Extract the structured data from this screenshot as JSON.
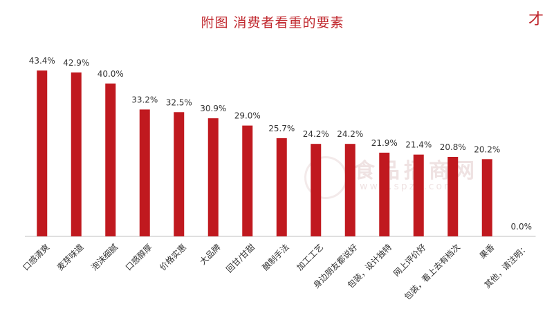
{
  "title": "附图 消费者看重的要素",
  "corner_text": "才",
  "watermark": {
    "cn": "食品招商网",
    "en": "www.spzs.com"
  },
  "colors": {
    "bar": "#c0191f",
    "title": "#c0272d",
    "axis": "#bfbfbf",
    "text": "#333333"
  },
  "chart_data": {
    "type": "bar",
    "title": "附图 消费者看重的要素",
    "categories": [
      "口感清爽",
      "麦芽味道",
      "泡沫细腻",
      "口感醇厚",
      "价格实惠",
      "大品牌",
      "回甘/甘甜",
      "酿制手法",
      "加工工艺",
      "身边朋友都说好",
      "包装，设计独特",
      "网上评价好",
      "包装，看上去有档次",
      "果香",
      "其他，请注明："
    ],
    "values": [
      43.4,
      42.9,
      40.0,
      33.2,
      32.5,
      30.9,
      29.0,
      25.7,
      24.2,
      24.2,
      21.9,
      21.4,
      20.8,
      20.2,
      0.0
    ],
    "data_labels": [
      "43.4%",
      "42.9%",
      "40.0%",
      "33.2%",
      "32.5%",
      "30.9%",
      "29.0%",
      "25.7%",
      "24.2%",
      "24.2%",
      "21.9%",
      "21.4%",
      "20.8%",
      "20.2%",
      "0.0%"
    ],
    "ylim": [
      0,
      45
    ],
    "grid": false,
    "legend": "none"
  }
}
